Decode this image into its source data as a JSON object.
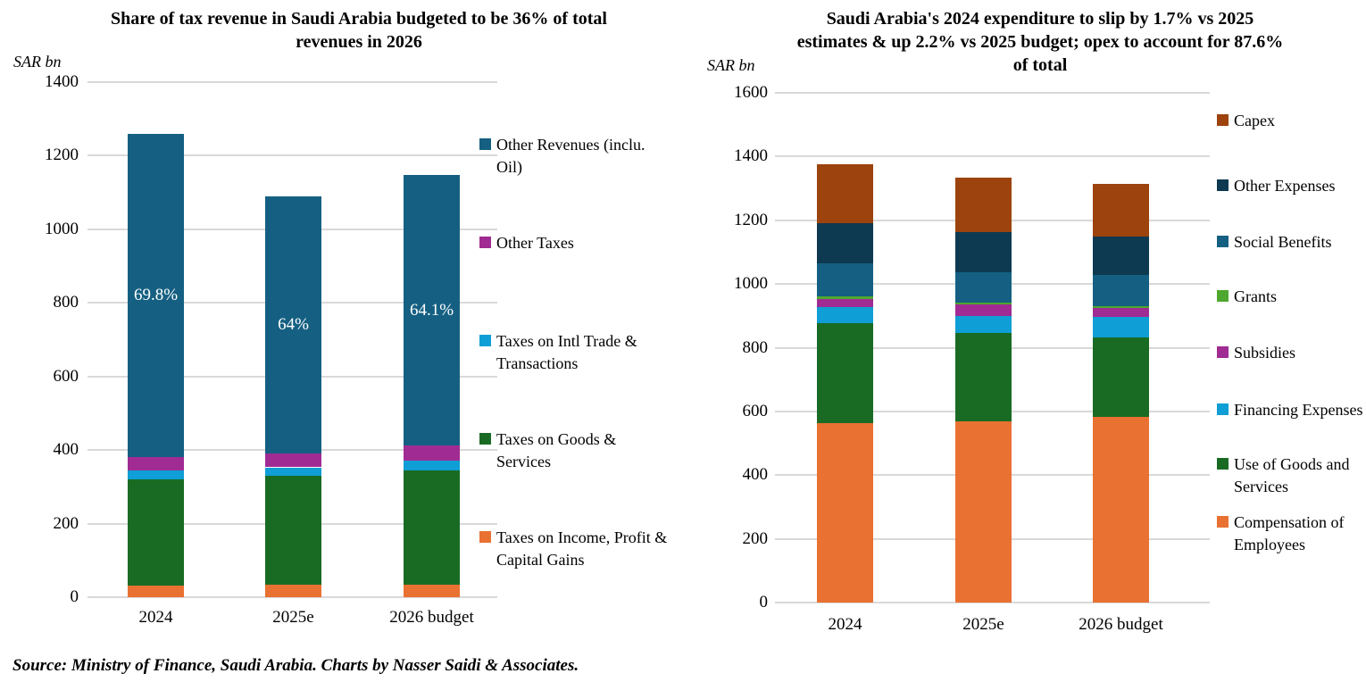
{
  "source_note": "Source: Ministry of Finance, Saudi Arabia. Charts by Nasser Saidi & Associates.",
  "colors": {
    "gridline": "#D9D9D9",
    "bar_label_text": "#FFFFFF",
    "text": "#000000"
  },
  "chart_data": [
    {
      "id": "revenue",
      "type": "bar",
      "stacked": true,
      "title": "Share of tax revenue in Saudi Arabia budgeted to be 36% of total revenues in 2026",
      "unit_label": "SAR bn",
      "categories": [
        "2024",
        "2025e",
        "2026 budget"
      ],
      "ylim": [
        0,
        1400
      ],
      "ytick_step": 200,
      "grid": true,
      "legend_position": "right",
      "series": [
        {
          "name": "Taxes on Income, Profit & Capital Gains",
          "color": "#E97132",
          "values": [
            32,
            34,
            34
          ]
        },
        {
          "name": "Taxes on Goods & Services",
          "color": "#196B24",
          "values": [
            288,
            295,
            311
          ]
        },
        {
          "name": "Taxes on Intl Trade & Transactions",
          "color": "#0F9ED5",
          "values": [
            25,
            24,
            26
          ]
        },
        {
          "name": "Other Taxes",
          "color": "#A02B93",
          "values": [
            36,
            37,
            41
          ]
        },
        {
          "name": "Other Revenues (inclu. Oil)",
          "color": "#156082",
          "values": [
            879,
            699,
            735
          ]
        }
      ],
      "bar_labels": [
        "69.8%",
        "64%",
        "64.1%"
      ]
    },
    {
      "id": "expenditure",
      "type": "bar",
      "stacked": true,
      "title": "Saudi Arabia's 2024 expenditure to slip by 1.7% vs 2025 estimates & up 2.2% vs 2025 budget; opex to account for 87.6% of total",
      "unit_label": "SAR bn",
      "categories": [
        "2024",
        "2025e",
        "2026 budget"
      ],
      "ylim": [
        0,
        1600
      ],
      "ytick_step": 200,
      "grid": true,
      "legend_position": "right",
      "series": [
        {
          "name": "Compensation of Employees",
          "color": "#E97132",
          "values": [
            562,
            570,
            583
          ]
        },
        {
          "name": "Use of Goods and Services",
          "color": "#196B24",
          "values": [
            315,
            275,
            250
          ]
        },
        {
          "name": "Financing Expenses",
          "color": "#0F9ED5",
          "values": [
            50,
            55,
            63
          ]
        },
        {
          "name": "Subsidies",
          "color": "#A02B93",
          "values": [
            27,
            36,
            28
          ]
        },
        {
          "name": "Grants",
          "color": "#4EA72E",
          "values": [
            7,
            5,
            5
          ]
        },
        {
          "name": "Social Benefits",
          "color": "#156082",
          "values": [
            104,
            95,
            100
          ]
        },
        {
          "name": "Other Expenses",
          "color": "#0D3A51",
          "values": [
            125,
            128,
            120
          ]
        },
        {
          "name": "Capex",
          "color": "#9C430E",
          "values": [
            185,
            170,
            164
          ]
        }
      ],
      "bar_labels": null
    }
  ]
}
